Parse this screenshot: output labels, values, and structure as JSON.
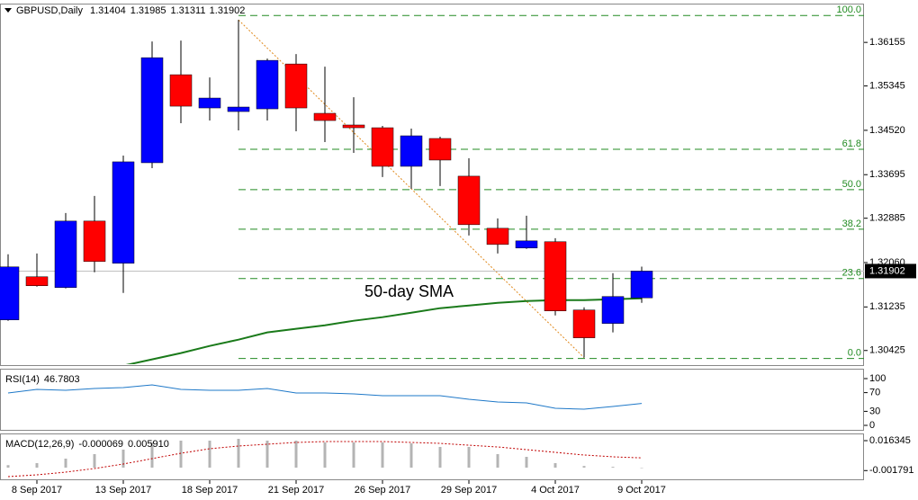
{
  "chart_data": [
    {
      "type": "candlestick",
      "title": "GBPUSD,Daily",
      "categories": [
        null,
        "8 Sep 2017",
        null,
        null,
        "13 Sep 2017",
        null,
        null,
        "18 Sep 2017",
        null,
        null,
        "21 Sep 2017",
        null,
        null,
        "26 Sep 2017",
        null,
        null,
        "29 Sep 2017",
        null,
        null,
        "4 Oct 2017",
        null,
        null,
        "9 Oct 2017"
      ],
      "open": [
        1.30995,
        1.31796,
        1.31596,
        1.32832,
        1.32047,
        1.33917,
        1.35554,
        1.34936,
        1.34869,
        1.34919,
        1.35754,
        1.34836,
        1.34619,
        1.34568,
        1.3385,
        1.34368,
        1.33667,
        1.32698,
        1.32331,
        1.32448,
        1.31178,
        1.30928,
        1.31404
      ],
      "high": [
        1.32214,
        1.3223,
        1.32982,
        1.33299,
        1.34051,
        1.36172,
        1.36188,
        1.35504,
        1.36573,
        1.35854,
        1.35938,
        1.35704,
        1.35136,
        1.34602,
        1.34552,
        1.34401,
        1.34001,
        1.32882,
        1.32932,
        1.32514,
        1.31228,
        1.31863,
        1.31985
      ],
      "low": [
        1.30978,
        1.31613,
        1.3158,
        1.3188,
        1.31496,
        1.33817,
        1.34652,
        1.34702,
        1.34518,
        1.34702,
        1.34502,
        1.34301,
        1.34101,
        1.3365,
        1.33433,
        1.33483,
        1.32564,
        1.3223,
        1.32314,
        1.31078,
        1.30293,
        1.30761,
        1.31311
      ],
      "close": [
        1.3198,
        1.31629,
        1.32832,
        1.3208,
        1.33934,
        1.35871,
        1.34969,
        1.3512,
        1.34953,
        1.35821,
        1.34936,
        1.34702,
        1.34568,
        1.3385,
        1.34418,
        1.33967,
        1.32765,
        1.32397,
        1.32464,
        1.31162,
        1.30661,
        1.31429,
        1.31902
      ],
      "up_color": "#0000ff",
      "down_color": "#ff0000",
      "ylim": [
        1.3017,
        1.3686
      ],
      "yticks": [
        1.36155,
        1.35345,
        {
          "value": 1.3452,
          "label": "1.34520"
        },
        1.33695,
        1.32885,
        {
          "value": 1.3206,
          "label": "1.32060"
        },
        1.31235,
        1.30425
      ],
      "sma": {
        "name": "50-day SMA",
        "color": "#1a7a1a",
        "values": [
          null,
          null,
          null,
          null,
          1.30143,
          1.3026,
          1.30377,
          1.3051,
          1.30627,
          1.30761,
          1.30828,
          1.30894,
          1.30978,
          1.31045,
          1.31128,
          1.31212,
          1.31262,
          1.31312,
          1.31345,
          1.31362,
          1.31362,
          1.31379,
          1.31395
        ]
      },
      "fibonacci": {
        "color": "#228b22",
        "levels": [
          {
            "value": 100,
            "label": "100.0"
          },
          61.8,
          {
            "value": 50,
            "label": "50.0"
          },
          38.2,
          23.6,
          {
            "value": 0,
            "label": "0.0"
          }
        ],
        "prices": [
          1.36656,
          1.34168,
          1.33416,
          1.32681,
          1.31763,
          1.30277
        ]
      }
    },
    {
      "type": "line",
      "title": "RSI(14)",
      "color": "#1e78c8",
      "values": [
        69.2,
        76.9,
        75.0,
        78.8,
        80.8,
        86.5,
        76.9,
        75.0,
        75.0,
        78.8,
        69.2,
        69.2,
        67.3,
        63.5,
        63.5,
        63.5,
        55.8,
        50.0,
        48.1,
        36.5,
        34.6,
        40.4,
        46.7803
      ],
      "ylim": [
        0,
        100
      ],
      "yticks": [
        100,
        70,
        30,
        0
      ]
    },
    {
      "type": "macd",
      "title": "MACD(12,26,9)",
      "histogram": {
        "color": "#b4b4b4",
        "values": [
          0.0015,
          0.00273,
          0.00545,
          0.00818,
          0.01091,
          0.01527,
          0.01636,
          0.01636,
          0.01745,
          0.01636,
          0.01636,
          0.01527,
          0.01527,
          0.01527,
          0.01472,
          0.01254,
          0.01254,
          0.00818,
          0.00654,
          0.00273,
          0.001,
          0.0005,
          -6.9e-05
        ]
      },
      "signal": {
        "color": "#c00000",
        "last_label": "0.005910",
        "values": [
          -0.00545,
          -0.00436,
          -0.00273,
          -0.00055,
          0.00218,
          0.00545,
          0.00872,
          0.01145,
          0.01309,
          0.01418,
          0.01527,
          0.01581,
          0.01581,
          0.01581,
          0.01527,
          0.01472,
          0.01363,
          0.01254,
          0.01091,
          0.00927,
          0.00763,
          0.00654,
          0.00591
        ]
      },
      "ylim": [
        -0.00654,
        0.01962
      ],
      "yticks": [
        0.016345,
        -0.001791
      ]
    }
  ]
}
